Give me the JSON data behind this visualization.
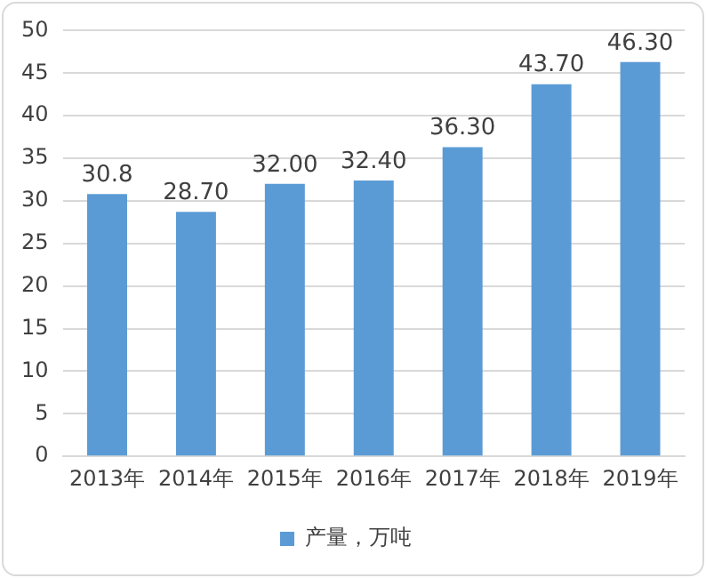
{
  "chart_data": {
    "type": "bar",
    "categories": [
      "2013年",
      "2014年",
      "2015年",
      "2016年",
      "2017年",
      "2018年",
      "2019年"
    ],
    "series": [
      {
        "name": "产量，万吨",
        "color": "#5b9bd5",
        "values": [
          30.8,
          28.7,
          32.0,
          32.4,
          36.3,
          43.7,
          46.3
        ],
        "value_labels": [
          "30.8",
          "28.70",
          "32.00",
          "32.40",
          "36.30",
          "43.70",
          "46.30"
        ]
      }
    ],
    "ylim": [
      0,
      50
    ],
    "yticks": [
      0,
      5,
      10,
      15,
      20,
      25,
      30,
      35,
      40,
      45,
      50
    ],
    "grid": "y",
    "legend": "bottom"
  }
}
